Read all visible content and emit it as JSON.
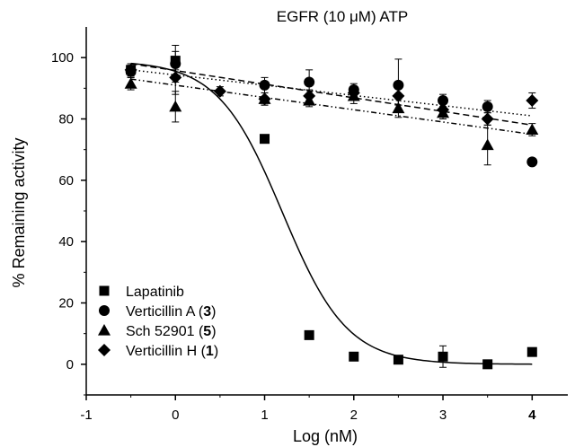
{
  "chart_data": {
    "type": "scatter",
    "title": "EGFR (10 μM) ATP",
    "xlabel": "Log (nM)",
    "ylabel": "% Remaining activity",
    "xlim": [
      -1,
      4.4
    ],
    "ylim": [
      -10,
      110
    ],
    "xticks": [
      -1,
      0,
      1,
      2,
      3,
      4
    ],
    "xtick_labels": [
      "-1",
      "0",
      "1",
      "2",
      "3",
      "4"
    ],
    "yticks": [
      0,
      20,
      40,
      60,
      80,
      100
    ],
    "ytick_labels": [
      "0",
      "20",
      "40",
      "60",
      "80",
      "100"
    ],
    "grid": false,
    "legend_position": "bottom-left",
    "series": [
      {
        "name": "Lapatinib",
        "name_parts": [
          "Lapatinib"
        ],
        "marker": "square",
        "points": [
          {
            "x": -0.5,
            "y": 96,
            "err": 2
          },
          {
            "x": 0,
            "y": 99,
            "err": 3
          },
          {
            "x": 1,
            "y": 73.5,
            "err": 0
          },
          {
            "x": 1.5,
            "y": 9.5,
            "err": 0
          },
          {
            "x": 2,
            "y": 2.5,
            "err": 0
          },
          {
            "x": 2.5,
            "y": 1.5,
            "err": 1
          },
          {
            "x": 3,
            "y": 2.5,
            "err": 3.5
          },
          {
            "x": 3.5,
            "y": 0,
            "err": 0
          },
          {
            "x": 4,
            "y": 4,
            "err": 0
          }
        ],
        "fit": {
          "kind": "sigmoid",
          "top": 99,
          "bottom": 0,
          "logIC50": 1.2,
          "hill": -1.2,
          "x_range": [
            -0.5,
            4
          ]
        }
      },
      {
        "name": "Verticillin A (3)",
        "name_parts": [
          "Verticillin A (",
          "3",
          ")"
        ],
        "marker": "circle",
        "points": [
          {
            "x": -0.5,
            "y": 95.5,
            "err": 2
          },
          {
            "x": 0,
            "y": 98,
            "err": 6
          },
          {
            "x": 1,
            "y": 91,
            "err": 2.5
          },
          {
            "x": 1.5,
            "y": 92,
            "err": 4
          },
          {
            "x": 2,
            "y": 89.5,
            "err": 2
          },
          {
            "x": 2.5,
            "y": 91,
            "err": 8.5
          },
          {
            "x": 3,
            "y": 86,
            "err": 2
          },
          {
            "x": 3.5,
            "y": 84,
            "err": 2
          },
          {
            "x": 4,
            "y": 66,
            "err": 0
          }
        ],
        "fit": {
          "kind": "linear",
          "y_start": 98,
          "y_end": 78,
          "x_range": [
            -0.5,
            4
          ],
          "dash": "7,4"
        }
      },
      {
        "name": "Sch 52901 (5)",
        "name_parts": [
          "Sch 52901 (",
          "5",
          ")"
        ],
        "marker": "triangle",
        "points": [
          {
            "x": -0.5,
            "y": 91.5,
            "err": 2
          },
          {
            "x": 0,
            "y": 84,
            "err": 5
          },
          {
            "x": 1,
            "y": 86.5,
            "err": 2
          },
          {
            "x": 1.5,
            "y": 86,
            "err": 2
          },
          {
            "x": 2,
            "y": 87.5,
            "err": 2.5
          },
          {
            "x": 2.5,
            "y": 83.5,
            "err": 3
          },
          {
            "x": 3,
            "y": 82,
            "err": 2
          },
          {
            "x": 3.5,
            "y": 71.5,
            "err": 6.5
          },
          {
            "x": 4,
            "y": 76.5,
            "err": 2
          }
        ],
        "fit": {
          "kind": "linear",
          "y_start": 93,
          "y_end": 75,
          "x_range": [
            -0.5,
            4
          ],
          "dash": "6,3,1.5,3,1.5,3"
        }
      },
      {
        "name": "Verticillin H (1)",
        "name_parts": [
          "Verticillin H (",
          "1",
          ")"
        ],
        "marker": "diamond",
        "points": [
          {
            "x": -0.5,
            "y": 96,
            "err": 2
          },
          {
            "x": 0,
            "y": 93.5,
            "err": 5.5
          },
          {
            "x": 0.5,
            "y": 89,
            "err": 1.5
          },
          {
            "x": 1,
            "y": 86.5,
            "err": 2
          },
          {
            "x": 1.5,
            "y": 87.5,
            "err": 2
          },
          {
            "x": 2,
            "y": 88.5,
            "err": 2
          },
          {
            "x": 2.5,
            "y": 87.5,
            "err": 3
          },
          {
            "x": 3,
            "y": 83,
            "err": 2
          },
          {
            "x": 3.5,
            "y": 80,
            "err": 2
          },
          {
            "x": 4,
            "y": 86,
            "err": 2.5
          }
        ],
        "fit": {
          "kind": "linear",
          "y_start": 96,
          "y_end": 81,
          "x_range": [
            -0.5,
            4
          ],
          "dash": "1.5,3"
        }
      }
    ]
  }
}
